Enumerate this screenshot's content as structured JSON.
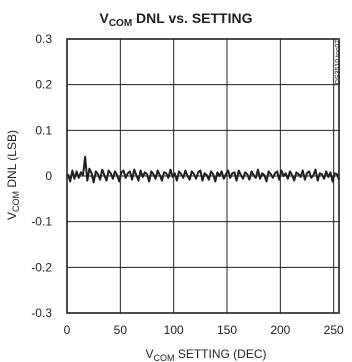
{
  "chart_data": {
    "type": "line",
    "title_main": "V",
    "title_sub": "COM",
    "title_rest": " DNL vs. SETTING",
    "xlabel_main": "V",
    "xlabel_sub": "COM",
    "xlabel_rest": " SETTING (DEC)",
    "ylabel_main": "V",
    "ylabel_sub": "COM",
    "ylabel_rest": " DNL (LSB)",
    "figure_code": "DS3510 toc07",
    "xlim": [
      0,
      255
    ],
    "ylim": [
      -0.3,
      0.3
    ],
    "x_ticks": [
      0,
      50,
      100,
      150,
      200,
      250
    ],
    "x_tick_labels": [
      "0",
      "50",
      "100",
      "150",
      "200",
      "250"
    ],
    "y_ticks": [
      0.3,
      0.2,
      0.1,
      0,
      -0.1,
      -0.2,
      -0.3
    ],
    "y_tick_labels": [
      "0.3",
      "0.2",
      "0.1",
      "0",
      "-0.1",
      "-0.2",
      "-0.3"
    ],
    "grid": true,
    "series": [
      {
        "x": [
          1,
          3,
          5,
          7,
          9,
          11,
          13,
          15,
          17,
          19,
          21,
          23,
          25,
          27,
          29,
          31,
          33,
          35,
          37,
          39,
          41,
          43,
          45,
          47,
          49,
          51,
          53,
          55,
          57,
          59,
          61,
          63,
          65,
          67,
          69,
          71,
          73,
          75,
          77,
          79,
          81,
          83,
          85,
          87,
          89,
          91,
          93,
          95,
          97,
          99,
          101,
          103,
          105,
          107,
          109,
          111,
          113,
          115,
          117,
          119,
          121,
          123,
          125,
          127,
          129,
          131,
          133,
          135,
          137,
          139,
          141,
          143,
          145,
          147,
          149,
          151,
          153,
          155,
          157,
          159,
          161,
          163,
          165,
          167,
          169,
          171,
          173,
          175,
          177,
          179,
          181,
          183,
          185,
          187,
          189,
          191,
          193,
          195,
          197,
          199,
          201,
          203,
          205,
          207,
          209,
          211,
          213,
          215,
          217,
          219,
          221,
          223,
          225,
          227,
          229,
          231,
          233,
          235,
          237,
          239,
          241,
          243,
          245,
          247,
          249,
          251,
          253,
          255
        ],
        "y": [
          0.004,
          -0.012,
          0.012,
          -0.006,
          0.01,
          -0.004,
          0.008,
          0.002,
          0.042,
          -0.01,
          0.016,
          0.006,
          -0.014,
          0.01,
          0.004,
          -0.008,
          0.014,
          0.002,
          -0.01,
          0.012,
          0.006,
          -0.006,
          0.01,
          0.002,
          -0.012,
          0.008,
          0.012,
          -0.004,
          0.006,
          0.01,
          -0.008,
          0.014,
          0.002,
          -0.01,
          0.012,
          -0.002,
          0.008,
          0.004,
          -0.012,
          0.01,
          0.004,
          -0.006,
          0.012,
          0.002,
          -0.01,
          0.008,
          0.006,
          -0.004,
          0.014,
          -0.002,
          0.006,
          -0.01,
          0.01,
          0.004,
          -0.004,
          0.012,
          0.0,
          -0.008,
          0.01,
          0.004,
          -0.006,
          0.008,
          0.012,
          -0.01,
          0.006,
          0.002,
          -0.008,
          0.01,
          0.004,
          -0.012,
          0.008,
          0.0,
          0.01,
          -0.006,
          0.004,
          0.012,
          -0.004,
          0.006,
          0.008,
          -0.01,
          0.012,
          0.002,
          -0.006,
          0.008,
          0.004,
          -0.008,
          0.01,
          0.002,
          -0.004,
          0.014,
          -0.006,
          0.006,
          0.002,
          -0.012,
          0.01,
          0.004,
          -0.004,
          0.006,
          0.01,
          -0.008,
          0.012,
          0.0,
          0.006,
          -0.006,
          0.01,
          0.002,
          -0.01,
          0.008,
          0.004,
          -0.002,
          0.012,
          -0.008,
          0.006,
          0.01,
          -0.004,
          0.002,
          0.014,
          -0.01,
          0.006,
          0.004,
          -0.006,
          0.01,
          -0.002,
          0.008,
          -0.012,
          0.006,
          0.004,
          -0.008
        ]
      }
    ]
  }
}
